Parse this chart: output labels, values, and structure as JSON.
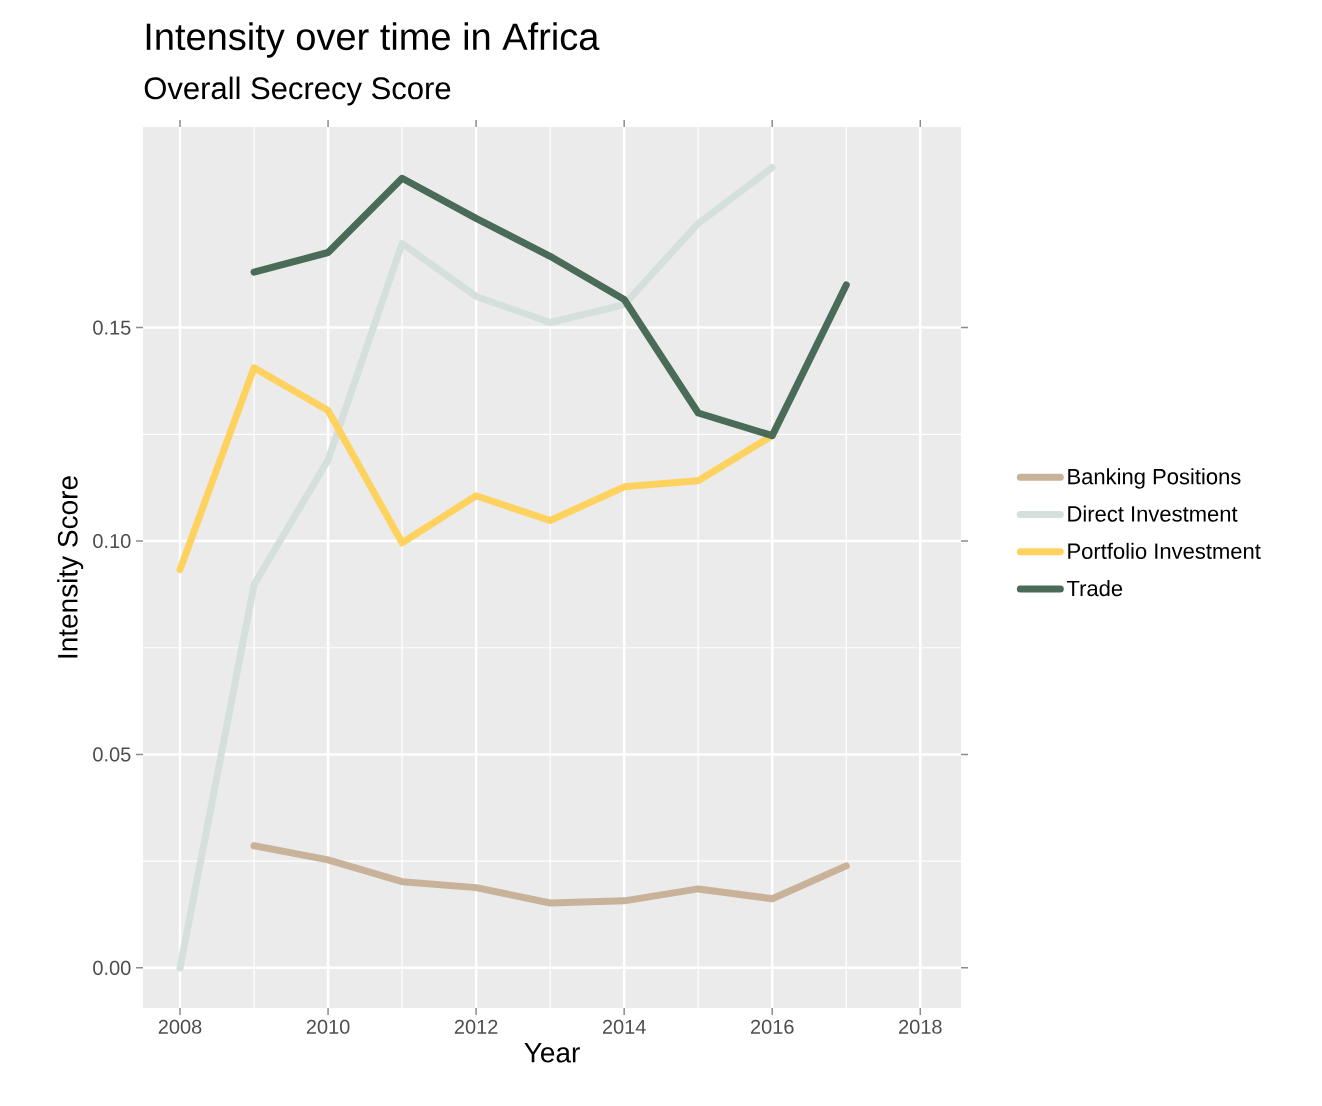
{
  "chart_data": {
    "type": "line",
    "title": "Intensity over time in Africa",
    "subtitle": "Overall Secrecy Score",
    "xlabel": "Year",
    "ylabel": "Intensity Score",
    "xlim": [
      2007.5,
      2018.55
    ],
    "ylim": [
      -0.0094,
      0.197
    ],
    "xticks": [
      2008,
      2010,
      2012,
      2014,
      2016,
      2018
    ],
    "yticks": [
      {
        "value": 0,
        "label": "0.00"
      },
      {
        "value": 0.05,
        "label": "0.05"
      },
      {
        "value": 0.1,
        "label": "0.10"
      },
      {
        "value": 0.15,
        "label": "0.15"
      }
    ],
    "grid": true,
    "legend": "right",
    "line_style": "solid",
    "series": [
      {
        "name": "Banking Positions",
        "color": "#c9b29a",
        "x": [
          2009,
          2010,
          2011,
          2012,
          2013,
          2014,
          2015,
          2016,
          2017
        ],
        "values": [
          0.0286,
          0.0253,
          0.0202,
          0.0188,
          0.0152,
          0.0157,
          0.0185,
          0.0162,
          0.0239
        ]
      },
      {
        "name": "Direct Investment",
        "color": "#d5e0dc",
        "x": [
          2008,
          2009,
          2010,
          2011,
          2012,
          2013,
          2014,
          2015,
          2016
        ],
        "values": [
          0.0,
          0.0898,
          0.119,
          0.1697,
          0.1573,
          0.1512,
          0.1554,
          0.1744,
          0.1875
        ]
      },
      {
        "name": "Portfolio Investment",
        "color": "#fdd25f",
        "x": [
          2008,
          2009,
          2010,
          2011,
          2012,
          2013,
          2014,
          2015,
          2016
        ],
        "values": [
          0.0933,
          0.1406,
          0.1306,
          0.0996,
          0.1106,
          0.1048,
          0.1127,
          0.1141,
          0.1247
        ]
      },
      {
        "name": "Trade",
        "color": "#4a6b57",
        "x": [
          2009,
          2010,
          2011,
          2012,
          2013,
          2014,
          2015,
          2016,
          2017
        ],
        "values": [
          0.163,
          0.1676,
          0.185,
          0.1756,
          0.1667,
          0.1566,
          0.13,
          0.1247,
          0.16
        ]
      }
    ]
  }
}
